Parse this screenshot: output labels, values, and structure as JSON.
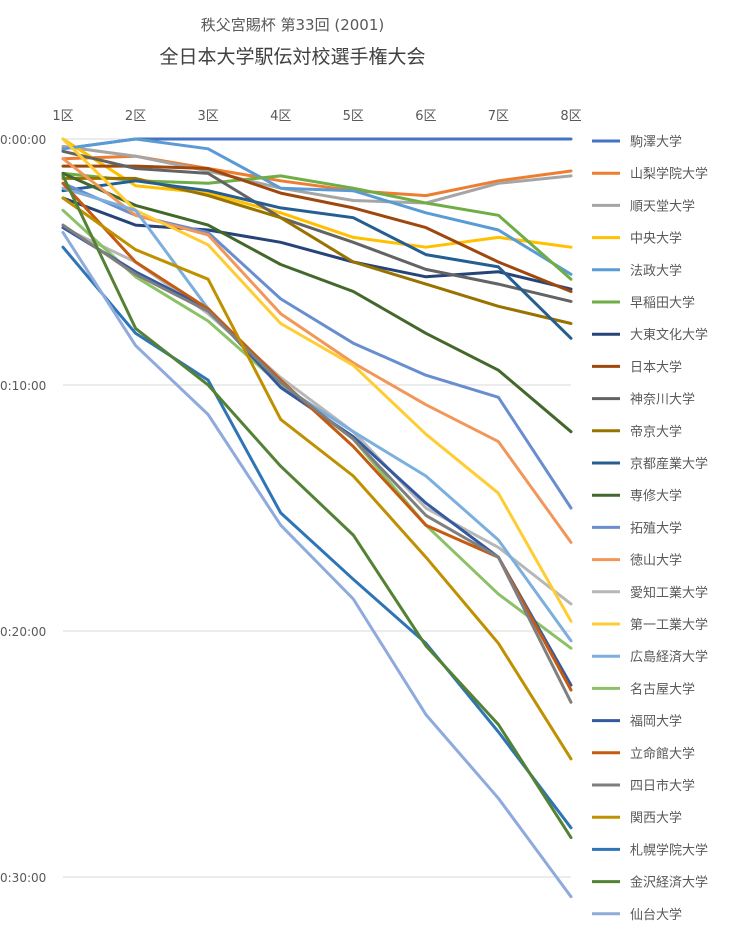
{
  "chart_data": {
    "type": "line",
    "title": "全日本大学駅伝対校選手権大会",
    "subtitle": "秩父宮賜杯 第33回 (2001)",
    "xlabel": "",
    "ylabel": "",
    "categories": [
      "1区",
      "2区",
      "3区",
      "4区",
      "5区",
      "6区",
      "7区",
      "8区"
    ],
    "y_unit": "minutes behind leader",
    "y_tick_labels": [
      "0:00:00",
      "0:10:00",
      "0:20:00",
      "0:30:00"
    ],
    "y_ticks": [
      0,
      10,
      20,
      30
    ],
    "ylim": [
      0,
      32
    ],
    "y_reversed": true,
    "grid": true,
    "legend_position": "right",
    "series": [
      {
        "name": "駒澤大学",
        "color": "#4472C4",
        "values": [
          0.4,
          0.0,
          0.0,
          0.0,
          0.0,
          0.0,
          0.0,
          0.0
        ]
      },
      {
        "name": "山梨学院大学",
        "color": "#ED7D31",
        "values": [
          0.8,
          0.7,
          1.2,
          1.7,
          2.1,
          2.3,
          1.7,
          1.3
        ]
      },
      {
        "name": "順天堂大学",
        "color": "#A5A5A5",
        "values": [
          0.3,
          0.7,
          1.3,
          2.0,
          2.5,
          2.6,
          1.8,
          1.5
        ]
      },
      {
        "name": "中央大学",
        "color": "#FFC000",
        "values": [
          0.0,
          1.9,
          2.2,
          3.0,
          4.0,
          4.4,
          4.0,
          4.4
        ]
      },
      {
        "name": "法政大学",
        "color": "#5B9BD5",
        "values": [
          0.4,
          0.0,
          0.4,
          2.0,
          2.1,
          3.0,
          3.7,
          5.5
        ]
      },
      {
        "name": "早稲田大学",
        "color": "#70AD47",
        "values": [
          1.4,
          1.7,
          1.8,
          1.5,
          2.0,
          2.6,
          3.1,
          5.7
        ]
      },
      {
        "name": "大東文化大学",
        "color": "#264478",
        "values": [
          2.4,
          3.5,
          3.7,
          4.2,
          5.0,
          5.6,
          5.4,
          6.1
        ]
      },
      {
        "name": "日本大学",
        "color": "#9E480E",
        "values": [
          1.1,
          1.1,
          1.2,
          2.2,
          2.8,
          3.6,
          5.0,
          6.2
        ]
      },
      {
        "name": "神奈川大学",
        "color": "#636363",
        "values": [
          0.5,
          1.2,
          1.4,
          3.2,
          4.2,
          5.3,
          5.9,
          6.6
        ]
      },
      {
        "name": "帝京大学",
        "color": "#997300",
        "values": [
          1.6,
          1.6,
          2.3,
          3.2,
          5.0,
          5.9,
          6.8,
          7.5
        ]
      },
      {
        "name": "京都産業大学",
        "color": "#255E91",
        "values": [
          2.1,
          1.7,
          2.1,
          2.8,
          3.2,
          4.7,
          5.2,
          8.1
        ]
      },
      {
        "name": "専修大学",
        "color": "#43682B",
        "values": [
          1.4,
          2.7,
          3.5,
          5.1,
          6.2,
          7.9,
          9.4,
          11.9
        ]
      },
      {
        "name": "拓殖大学",
        "color": "#698ED0",
        "values": [
          1.8,
          3.1,
          3.8,
          6.5,
          8.3,
          9.6,
          10.5,
          15.0
        ]
      },
      {
        "name": "徳山大学",
        "color": "#F1975A",
        "values": [
          0.8,
          3.1,
          3.9,
          7.1,
          9.1,
          10.8,
          12.3,
          16.4
        ]
      },
      {
        "name": "愛知工業大学",
        "color": "#B7B7B7",
        "values": [
          3.6,
          5.0,
          7.1,
          9.7,
          11.9,
          15.0,
          16.6,
          18.9
        ]
      },
      {
        "name": "第一工業大学",
        "color": "#FFCD33",
        "values": [
          0.0,
          2.9,
          4.3,
          7.5,
          9.2,
          12.0,
          14.4,
          19.6
        ]
      },
      {
        "name": "広島経済大学",
        "color": "#7CAFDD",
        "values": [
          2.0,
          2.9,
          6.9,
          10.0,
          11.9,
          13.7,
          16.3,
          20.4
        ]
      },
      {
        "name": "名古屋大学",
        "color": "#8CC168",
        "values": [
          2.9,
          5.6,
          7.4,
          10.0,
          12.2,
          15.7,
          18.5,
          20.7
        ]
      },
      {
        "name": "福岡大学",
        "color": "#335AA1",
        "values": [
          3.6,
          5.4,
          6.9,
          10.1,
          12.1,
          14.8,
          17.0,
          22.2
        ]
      },
      {
        "name": "立命館大学",
        "color": "#C55A11",
        "values": [
          1.8,
          5.0,
          6.9,
          9.8,
          12.5,
          15.7,
          17.0,
          22.4
        ]
      },
      {
        "name": "四日市大学",
        "color": "#7F7F7F",
        "values": [
          3.5,
          5.5,
          7.0,
          9.9,
          12.2,
          15.3,
          17.0,
          22.9
        ]
      },
      {
        "name": "関西大学",
        "color": "#BF9000",
        "values": [
          2.4,
          4.5,
          5.7,
          11.4,
          13.7,
          17.0,
          20.5,
          25.2
        ]
      },
      {
        "name": "札幌学院大学",
        "color": "#2E75B6",
        "values": [
          4.4,
          7.9,
          9.8,
          15.2,
          17.9,
          20.5,
          24.1,
          28.0
        ]
      },
      {
        "name": "金沢経済大学",
        "color": "#548235",
        "values": [
          1.5,
          7.7,
          10.0,
          13.3,
          16.1,
          20.6,
          23.8,
          28.4
        ]
      },
      {
        "name": "仙台大学",
        "color": "#8FAADC",
        "values": [
          3.8,
          8.4,
          11.2,
          15.7,
          18.7,
          23.4,
          26.8,
          30.8
        ]
      }
    ]
  }
}
